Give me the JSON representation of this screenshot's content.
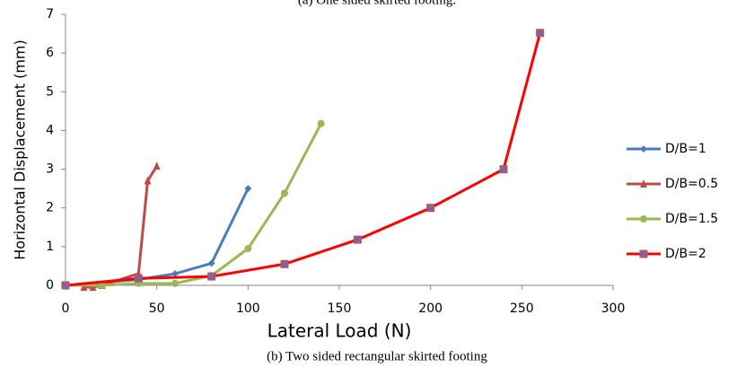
{
  "chart_data": {
    "type": "line",
    "title": "(a) One sided skirted footing.",
    "caption": "(b) Two sided rectangular skirted footing",
    "xlabel": "Lateral Load (N)",
    "ylabel": "Horizontal Displacement (mm)",
    "xlim": [
      0,
      300
    ],
    "xticks": [
      0,
      50,
      100,
      150,
      200,
      250,
      300
    ],
    "ylim": [
      0,
      7
    ],
    "yticks": [
      0,
      1,
      2,
      3,
      4,
      5,
      6,
      7
    ],
    "legend": "right",
    "series": [
      {
        "name": "D/B=1",
        "color": "#4a7ebb",
        "marker": "diamond",
        "marker_color": "#4a7ebb",
        "x": [
          0,
          40,
          60,
          80,
          100
        ],
        "values": [
          0,
          0.15,
          0.3,
          0.57,
          2.5
        ]
      },
      {
        "name": "D/B=0.5",
        "color": "#be4b48",
        "marker": "triangle",
        "marker_color": "#be4b48",
        "x": [
          10,
          15,
          20,
          40,
          45,
          50
        ],
        "values": [
          -0.05,
          -0.05,
          0,
          0.3,
          2.7,
          3.08
        ]
      },
      {
        "name": "D/B=1.5",
        "color": "#98b954",
        "marker": "circle",
        "marker_color": "#98b954",
        "x": [
          0,
          20,
          40,
          60,
          80,
          100,
          120,
          140
        ],
        "values": [
          0,
          0,
          0.05,
          0.05,
          0.25,
          0.95,
          2.38,
          4.18
        ]
      },
      {
        "name": "D/B=2",
        "color": "#ff0000",
        "marker": "square",
        "marker_color": "#8064a2",
        "x": [
          0,
          40,
          80,
          120,
          160,
          200,
          240,
          260
        ],
        "values": [
          0,
          0.18,
          0.23,
          0.55,
          1.18,
          2.0,
          3.0,
          6.52
        ]
      }
    ]
  }
}
